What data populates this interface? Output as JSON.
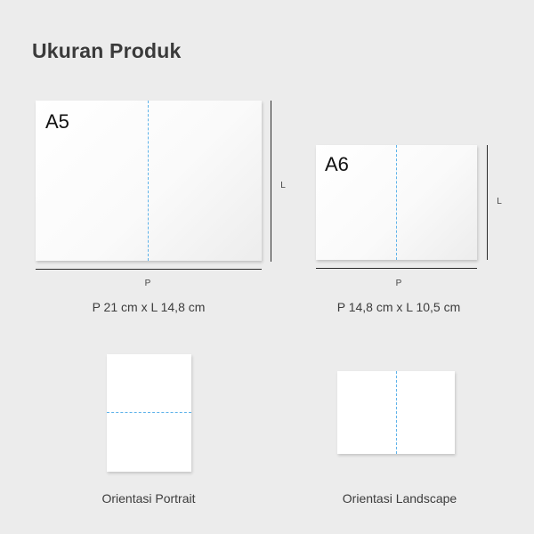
{
  "title": "Ukuran Produk",
  "sizes": [
    {
      "name": "A5",
      "width_letter": "P",
      "height_letter": "L",
      "dimensions": "P 21 cm x L 14,8 cm"
    },
    {
      "name": "A6",
      "width_letter": "P",
      "height_letter": "L",
      "dimensions": "P 14,8 cm x L 10,5 cm"
    }
  ],
  "orientations": [
    {
      "label": "Orientasi Portrait"
    },
    {
      "label": "Orientasi Landscape"
    }
  ],
  "colors": {
    "background": "#ececec",
    "fold_line": "#5fb3ea",
    "sheet": "#ffffff"
  },
  "icons": {
    "fold": "fold-line"
  }
}
